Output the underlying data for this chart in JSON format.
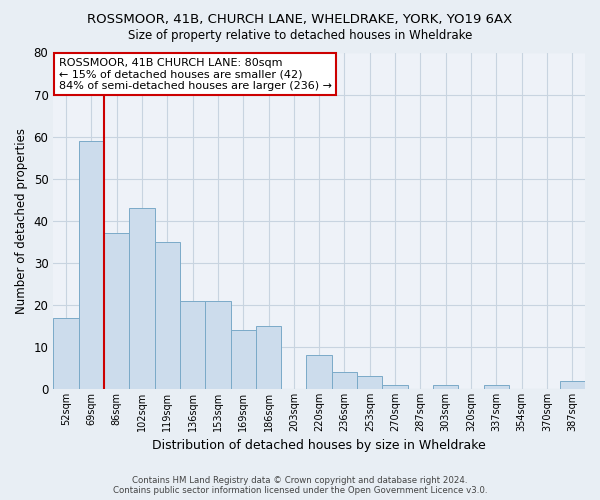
{
  "title": "ROSSMOOR, 41B, CHURCH LANE, WHELDRAKE, YORK, YO19 6AX",
  "subtitle": "Size of property relative to detached houses in Wheldrake",
  "xlabel": "Distribution of detached houses by size in Wheldrake",
  "ylabel": "Number of detached properties",
  "bar_labels": [
    "52sqm",
    "69sqm",
    "86sqm",
    "102sqm",
    "119sqm",
    "136sqm",
    "153sqm",
    "169sqm",
    "186sqm",
    "203sqm",
    "220sqm",
    "236sqm",
    "253sqm",
    "270sqm",
    "287sqm",
    "303sqm",
    "320sqm",
    "337sqm",
    "354sqm",
    "370sqm",
    "387sqm"
  ],
  "bar_values": [
    17,
    59,
    37,
    43,
    35,
    21,
    21,
    14,
    15,
    0,
    8,
    4,
    3,
    1,
    0,
    1,
    0,
    1,
    0,
    0,
    2
  ],
  "bar_color": "#ccdcec",
  "bar_edge_color": "#7aaac8",
  "vline_color": "#cc0000",
  "vline_at_bar_index": 1,
  "ylim": [
    0,
    80
  ],
  "yticks": [
    0,
    10,
    20,
    30,
    40,
    50,
    60,
    70,
    80
  ],
  "annotation_line1": "ROSSMOOR, 41B CHURCH LANE: 80sqm",
  "annotation_line2": "← 15% of detached houses are smaller (42)",
  "annotation_line3": "84% of semi-detached houses are larger (236) →",
  "footer_line1": "Contains HM Land Registry data © Crown copyright and database right 2024.",
  "footer_line2": "Contains public sector information licensed under the Open Government Licence v3.0.",
  "bg_color": "#e8eef4",
  "plot_bg_color": "#eef2f8",
  "grid_color": "#c8d4e0"
}
